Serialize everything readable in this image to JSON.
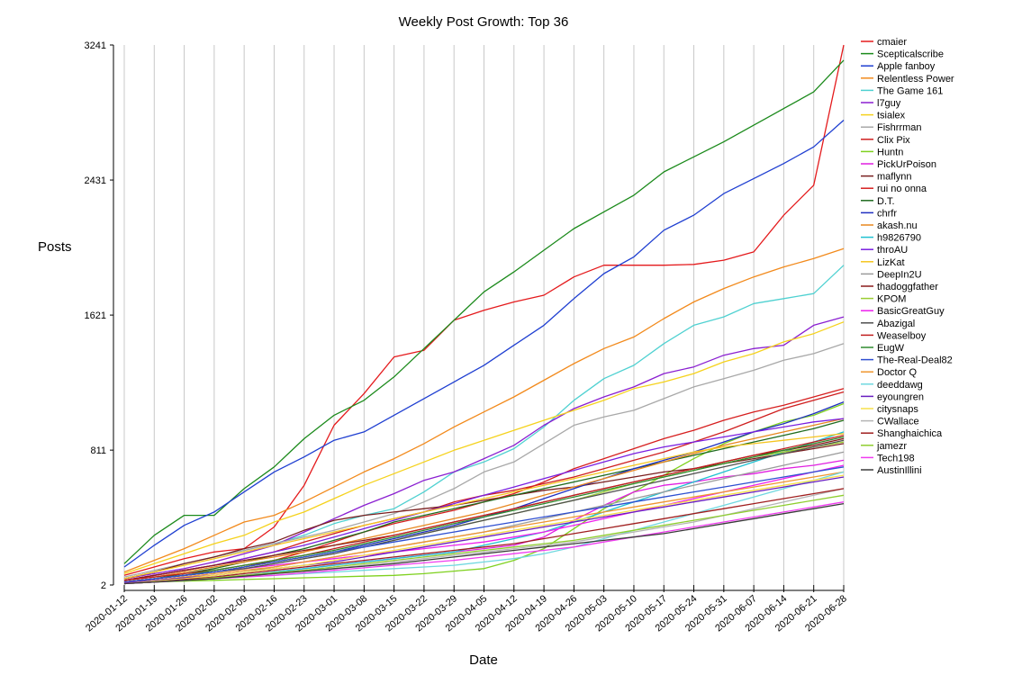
{
  "chart_data": {
    "type": "line",
    "title": "Weekly Post Growth: Top 36",
    "xlabel": "Date",
    "ylabel": "Posts",
    "yticks": [
      2,
      811,
      1621,
      2431,
      3241
    ],
    "ylim": [
      2,
      3241
    ],
    "grid": "vertical",
    "legend_position": "right",
    "x": [
      "2020-01-12",
      "2020-01-19",
      "2020-01-26",
      "2020-02-02",
      "2020-02-09",
      "2020-02-16",
      "2020-02-23",
      "2020-03-01",
      "2020-03-08",
      "2020-03-15",
      "2020-03-22",
      "2020-03-29",
      "2020-04-05",
      "2020-04-12",
      "2020-04-19",
      "2020-04-26",
      "2020-05-03",
      "2020-05-10",
      "2020-05-17",
      "2020-05-24",
      "2020-05-31",
      "2020-06-07",
      "2020-06-14",
      "2020-06-21",
      "2020-06-28"
    ],
    "series": [
      {
        "name": "cmaier",
        "color": "#e41a1c",
        "values": [
          60,
          110,
          160,
          200,
          220,
          350,
          600,
          960,
          1150,
          1370,
          1410,
          1590,
          1650,
          1700,
          1740,
          1850,
          1920,
          1920,
          1920,
          1925,
          1950,
          2000,
          2220,
          2400,
          3241
        ]
      },
      {
        "name": "Scepticalscribe",
        "color": "#1b8a1b",
        "values": [
          130,
          300,
          420,
          420,
          580,
          710,
          880,
          1020,
          1110,
          1250,
          1420,
          1590,
          1760,
          1880,
          2010,
          2140,
          2240,
          2340,
          2480,
          2570,
          2660,
          2760,
          2860,
          2960,
          3150
        ]
      },
      {
        "name": "Apple fanboy",
        "color": "#1f3fd1",
        "values": [
          110,
          240,
          360,
          440,
          560,
          680,
          770,
          870,
          920,
          1020,
          1120,
          1220,
          1320,
          1440,
          1560,
          1720,
          1870,
          1970,
          2130,
          2220,
          2350,
          2440,
          2530,
          2630,
          2790
        ]
      },
      {
        "name": "Relentless Power",
        "color": "#f28a1c",
        "values": [
          80,
          150,
          220,
          300,
          380,
          420,
          500,
          590,
          680,
          760,
          850,
          950,
          1040,
          1130,
          1230,
          1330,
          1420,
          1490,
          1600,
          1700,
          1780,
          1850,
          1910,
          1960,
          2020
        ]
      },
      {
        "name": "The Game 161",
        "color": "#4fd1d1",
        "values": [
          40,
          80,
          130,
          170,
          210,
          250,
          300,
          370,
          420,
          460,
          560,
          680,
          740,
          820,
          950,
          1110,
          1240,
          1320,
          1450,
          1560,
          1610,
          1690,
          1720,
          1750,
          1920
        ]
      },
      {
        "name": "l7guy",
        "color": "#8a1fd1",
        "values": [
          40,
          70,
          100,
          140,
          190,
          240,
          320,
          400,
          480,
          550,
          630,
          680,
          760,
          840,
          960,
          1060,
          1130,
          1190,
          1270,
          1310,
          1380,
          1420,
          1440,
          1560,
          1610
        ]
      },
      {
        "name": "tsialex",
        "color": "#f5d21c",
        "values": [
          70,
          130,
          190,
          250,
          300,
          380,
          440,
          520,
          600,
          670,
          740,
          810,
          870,
          930,
          990,
          1050,
          1110,
          1180,
          1220,
          1270,
          1340,
          1390,
          1460,
          1510,
          1580
        ]
      },
      {
        "name": "Fishrrman",
        "color": "#a8a8a8",
        "values": [
          50,
          90,
          130,
          170,
          210,
          250,
          290,
          330,
          380,
          430,
          500,
          580,
          680,
          740,
          850,
          960,
          1010,
          1050,
          1120,
          1190,
          1240,
          1290,
          1350,
          1390,
          1450
        ]
      },
      {
        "name": "Clix Pix",
        "color": "#cf1f1f",
        "values": [
          30,
          60,
          90,
          120,
          160,
          200,
          260,
          310,
          360,
          400,
          440,
          500,
          540,
          570,
          610,
          650,
          700,
          750,
          800,
          860,
          920,
          990,
          1060,
          1110,
          1160
        ]
      },
      {
        "name": "Huntn",
        "color": "#7fd11f",
        "values": [
          15,
          20,
          25,
          30,
          35,
          40,
          45,
          50,
          55,
          60,
          70,
          85,
          100,
          150,
          220,
          340,
          460,
          560,
          660,
          760,
          850,
          920,
          980,
          1020,
          1090
        ]
      },
      {
        "name": "PickUrPoison",
        "color": "#e11fe1",
        "values": [
          10,
          20,
          30,
          40,
          60,
          80,
          100,
          120,
          140,
          160,
          180,
          200,
          220,
          240,
          290,
          390,
          480,
          560,
          600,
          620,
          650,
          670,
          700,
          720,
          750
        ]
      },
      {
        "name": "maflynn",
        "color": "#7a1f1f",
        "values": [
          40,
          80,
          130,
          170,
          220,
          260,
          330,
          390,
          420,
          440,
          460,
          480,
          510,
          540,
          570,
          590,
          620,
          650,
          680,
          700,
          730,
          760,
          790,
          820,
          850
        ]
      },
      {
        "name": "rui no onna",
        "color": "#d61f1f",
        "values": [
          20,
          40,
          60,
          80,
          110,
          150,
          200,
          260,
          320,
          370,
          410,
          450,
          500,
          550,
          620,
          700,
          760,
          820,
          880,
          930,
          990,
          1040,
          1080,
          1130,
          1180
        ]
      },
      {
        "name": "D.T.",
        "color": "#1f6b1f",
        "values": [
          20,
          40,
          70,
          100,
          140,
          180,
          220,
          270,
          320,
          380,
          420,
          460,
          500,
          540,
          580,
          620,
          660,
          700,
          740,
          780,
          820,
          860,
          900,
          940,
          990
        ]
      },
      {
        "name": "chrfr",
        "color": "#1f2fc0",
        "values": [
          20,
          40,
          60,
          80,
          110,
          140,
          170,
          200,
          240,
          280,
          320,
          360,
          410,
          460,
          520,
          580,
          640,
          700,
          750,
          800,
          860,
          920,
          970,
          1030,
          1100
        ]
      },
      {
        "name": "akash.nu",
        "color": "#e8871f",
        "values": [
          30,
          50,
          80,
          110,
          140,
          170,
          200,
          240,
          280,
          320,
          360,
          400,
          440,
          490,
          540,
          590,
          640,
          690,
          740,
          790,
          840,
          880,
          920,
          960,
          1000
        ]
      },
      {
        "name": "h9826790",
        "color": "#1fc1d1",
        "values": [
          10,
          20,
          30,
          40,
          60,
          80,
          100,
          120,
          140,
          160,
          180,
          200,
          240,
          280,
          320,
          380,
          440,
          500,
          560,
          620,
          680,
          740,
          800,
          860,
          920
        ]
      },
      {
        "name": "throAU",
        "color": "#7a1fe1",
        "values": [
          30,
          60,
          90,
          120,
          160,
          200,
          240,
          290,
          340,
          390,
          440,
          490,
          540,
          590,
          640,
          690,
          740,
          790,
          830,
          860,
          890,
          920,
          950,
          980,
          1000
        ]
      },
      {
        "name": "LizKat",
        "color": "#f5c51f",
        "values": [
          40,
          80,
          120,
          160,
          200,
          240,
          280,
          320,
          360,
          400,
          440,
          480,
          520,
          560,
          600,
          640,
          680,
          720,
          760,
          800,
          830,
          850,
          870,
          890,
          910
        ]
      },
      {
        "name": "DeepIn2U",
        "color": "#9a9a9a",
        "values": [
          10,
          20,
          40,
          60,
          80,
          110,
          140,
          170,
          200,
          230,
          260,
          290,
          320,
          360,
          400,
          440,
          480,
          520,
          560,
          600,
          640,
          680,
          720,
          760,
          800
        ]
      },
      {
        "name": "thadoggfather",
        "color": "#8b1a1a",
        "values": [
          30,
          60,
          90,
          120,
          150,
          180,
          210,
          240,
          270,
          300,
          340,
          380,
          420,
          460,
          500,
          540,
          580,
          620,
          660,
          700,
          740,
          780,
          810,
          840,
          880
        ]
      },
      {
        "name": "KPOM",
        "color": "#9acd32",
        "values": [
          20,
          40,
          60,
          80,
          110,
          140,
          170,
          200,
          230,
          270,
          310,
          350,
          390,
          430,
          470,
          510,
          560,
          610,
          650,
          690,
          730,
          770,
          800,
          830,
          860
        ]
      },
      {
        "name": "BasicGreatGuy",
        "color": "#ee1fee",
        "values": [
          20,
          40,
          60,
          80,
          100,
          120,
          140,
          160,
          180,
          200,
          220,
          240,
          260,
          290,
          320,
          360,
          400,
          440,
          480,
          520,
          560,
          600,
          640,
          680,
          720
        ]
      },
      {
        "name": "Abazigal",
        "color": "#505050",
        "values": [
          20,
          40,
          60,
          80,
          100,
          130,
          160,
          190,
          230,
          270,
          310,
          350,
          390,
          430,
          470,
          510,
          550,
          590,
          630,
          670,
          710,
          750,
          790,
          830,
          870
        ]
      },
      {
        "name": "Weaselboy",
        "color": "#c01f1f",
        "values": [
          30,
          50,
          70,
          90,
          120,
          150,
          180,
          220,
          260,
          300,
          340,
          380,
          420,
          460,
          500,
          540,
          580,
          620,
          660,
          700,
          740,
          780,
          820,
          860,
          900
        ]
      },
      {
        "name": "EugW",
        "color": "#2f8b2f",
        "values": [
          20,
          40,
          60,
          90,
          120,
          150,
          180,
          210,
          250,
          290,
          330,
          370,
          410,
          450,
          490,
          530,
          570,
          610,
          650,
          690,
          730,
          770,
          810,
          850,
          890
        ]
      },
      {
        "name": "The-Real-Deal82",
        "color": "#2f4fd1",
        "values": [
          20,
          40,
          60,
          80,
          110,
          140,
          170,
          200,
          230,
          260,
          290,
          320,
          350,
          380,
          410,
          440,
          470,
          500,
          530,
          560,
          590,
          620,
          650,
          680,
          710
        ]
      },
      {
        "name": "Doctor Q",
        "color": "#f0962f",
        "values": [
          15,
          30,
          50,
          70,
          90,
          110,
          140,
          170,
          200,
          230,
          260,
          290,
          320,
          350,
          380,
          410,
          440,
          470,
          500,
          530,
          560,
          590,
          620,
          650,
          680
        ]
      },
      {
        "name": "deeddawg",
        "color": "#6fd8e0",
        "values": [
          10,
          20,
          30,
          40,
          50,
          60,
          70,
          80,
          90,
          100,
          110,
          120,
          140,
          160,
          190,
          230,
          280,
          330,
          380,
          430,
          480,
          530,
          580,
          630,
          680
        ]
      },
      {
        "name": "eyoungren",
        "color": "#6a1fc0",
        "values": [
          15,
          30,
          45,
          60,
          80,
          100,
          120,
          140,
          170,
          200,
          230,
          260,
          290,
          320,
          350,
          380,
          410,
          440,
          470,
          500,
          530,
          560,
          590,
          620,
          650
        ]
      },
      {
        "name": "citysnaps",
        "color": "#f7e04a",
        "values": [
          10,
          25,
          40,
          60,
          80,
          100,
          120,
          150,
          180,
          210,
          240,
          270,
          300,
          330,
          360,
          390,
          420,
          450,
          480,
          510,
          540,
          570,
          600,
          630,
          660
        ]
      },
      {
        "name": "CWallace",
        "color": "#b5b5b5",
        "values": [
          10,
          20,
          30,
          40,
          55,
          70,
          85,
          100,
          120,
          140,
          160,
          180,
          200,
          220,
          240,
          260,
          290,
          320,
          350,
          380,
          420,
          460,
          500,
          540,
          580
        ]
      },
      {
        "name": "Shanghaichica",
        "color": "#a01f1f",
        "values": [
          10,
          20,
          35,
          50,
          70,
          90,
          110,
          130,
          150,
          170,
          190,
          210,
          230,
          250,
          280,
          310,
          340,
          370,
          400,
          430,
          460,
          490,
          520,
          550,
          580
        ]
      },
      {
        "name": "jamezr",
        "color": "#8fce2f",
        "values": [
          10,
          20,
          30,
          45,
          60,
          75,
          90,
          110,
          130,
          150,
          170,
          190,
          210,
          230,
          250,
          270,
          300,
          330,
          360,
          390,
          420,
          450,
          480,
          510,
          540
        ]
      },
      {
        "name": "Tech198",
        "color": "#f03cf0",
        "values": [
          10,
          20,
          30,
          40,
          50,
          60,
          75,
          90,
          105,
          120,
          135,
          150,
          170,
          190,
          210,
          230,
          260,
          290,
          320,
          350,
          380,
          410,
          440,
          470,
          500
        ]
      },
      {
        "name": "AustinIllini",
        "color": "#3a3a3a",
        "values": [
          10,
          20,
          30,
          40,
          55,
          70,
          85,
          100,
          115,
          130,
          150,
          170,
          190,
          210,
          230,
          250,
          270,
          290,
          310,
          340,
          370,
          400,
          430,
          460,
          490
        ]
      }
    ]
  }
}
